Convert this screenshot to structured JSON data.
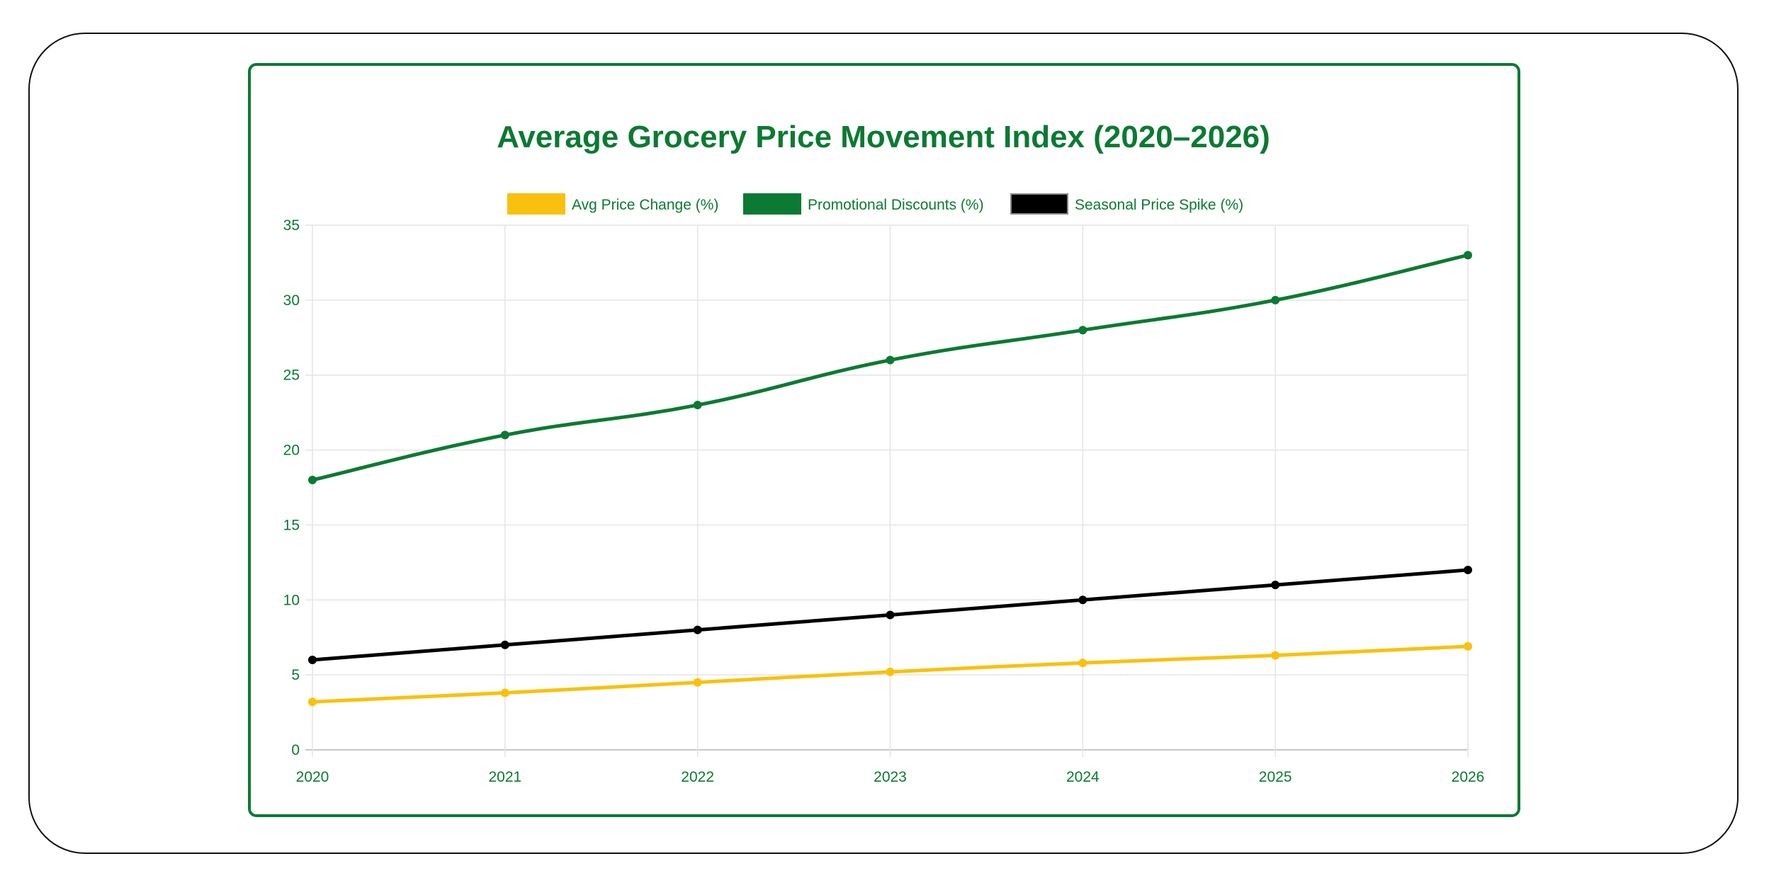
{
  "chart_data": {
    "type": "line",
    "title": "Average Grocery Price Movement Index (2020–2026)",
    "categories": [
      "2020",
      "2021",
      "2022",
      "2023",
      "2024",
      "2025",
      "2026"
    ],
    "series": [
      {
        "name": "Avg Price Change (%)",
        "color": "#f9c10e",
        "values": [
          3.2,
          3.8,
          4.5,
          5.2,
          5.8,
          6.3,
          6.9
        ]
      },
      {
        "name": "Promotional Discounts (%)",
        "color": "#0b7a32",
        "values": [
          18,
          21,
          23,
          26,
          28,
          30,
          33
        ]
      },
      {
        "name": "Seasonal Price Spike (%)",
        "color": "#000000",
        "values": [
          6,
          7,
          8,
          9,
          10,
          11,
          12
        ]
      }
    ],
    "xlabel": "",
    "ylabel": "",
    "ylim": [
      0,
      35
    ],
    "yticks": [
      0,
      5,
      10,
      15,
      20,
      25,
      30,
      35
    ],
    "grid": true,
    "legend": "top",
    "text_color": "#0b7a32"
  }
}
